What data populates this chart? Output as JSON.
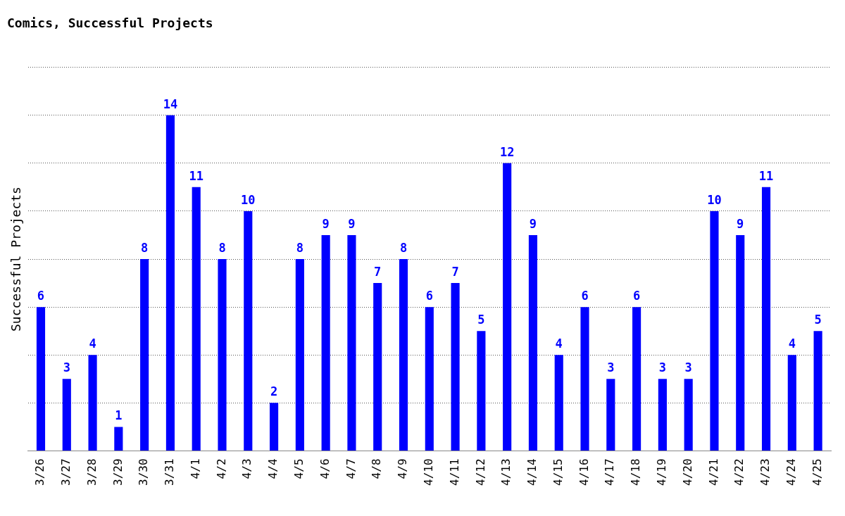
{
  "chart_data": {
    "type": "bar",
    "title": "Comics, Successful Projects",
    "ylabel": "Successful Projects",
    "categories": [
      "3/26",
      "3/27",
      "3/28",
      "3/29",
      "3/30",
      "3/31",
      "4/1",
      "4/2",
      "4/3",
      "4/4",
      "4/5",
      "4/6",
      "4/7",
      "4/8",
      "4/9",
      "4/10",
      "4/11",
      "4/12",
      "4/13",
      "4/14",
      "4/15",
      "4/16",
      "4/17",
      "4/18",
      "4/19",
      "4/20",
      "4/21",
      "4/22",
      "4/23",
      "4/24",
      "4/25"
    ],
    "values": [
      6,
      3,
      4,
      1,
      8,
      14,
      11,
      8,
      10,
      2,
      8,
      9,
      9,
      7,
      8,
      6,
      7,
      5,
      12,
      9,
      4,
      6,
      3,
      6,
      3,
      3,
      10,
      9,
      11,
      4,
      5
    ],
    "color": "#0000ff",
    "ylim": [
      0,
      16
    ],
    "yticks": [
      {
        "value": 0,
        "label": null
      },
      {
        "value": 2,
        "label": null
      },
      {
        "value": 4,
        "label": null
      },
      {
        "value": 6,
        "label": null
      },
      {
        "value": 8,
        "label": null
      },
      {
        "value": 10,
        "label": null
      },
      {
        "value": 12,
        "label": null
      },
      {
        "value": 14,
        "label": null
      },
      {
        "value": 16,
        "label": null
      }
    ],
    "tick_labels": "x",
    "grid": "y",
    "data_labels": true,
    "legend": false
  }
}
